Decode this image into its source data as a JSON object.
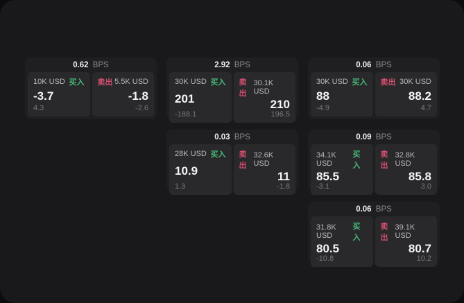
{
  "window": {
    "background": "#19191b"
  },
  "labels": {
    "bps_unit": "BPS",
    "buy": "买入",
    "sell": "卖出"
  },
  "colors": {
    "buy": "#46b878",
    "sell": "#d34f6e",
    "card_background": "#1f1f22",
    "panel_background": "#29292c"
  },
  "cards": [
    {
      "grid": {
        "col": 1,
        "row": 1
      },
      "bps": "0.62",
      "buy": {
        "amount": "10K USD",
        "price": "-3.7",
        "delta": "4.3"
      },
      "sell": {
        "amount": "5.5K USD",
        "price": "-1.8",
        "delta": "-2.6"
      }
    },
    {
      "grid": {
        "col": 2,
        "row": 1
      },
      "bps": "2.92",
      "buy": {
        "amount": "30K USD",
        "price": "201",
        "delta": "-188.1"
      },
      "sell": {
        "amount": "30.1K USD",
        "price": "210",
        "delta": "196.5"
      }
    },
    {
      "grid": {
        "col": 3,
        "row": 1
      },
      "bps": "0.06",
      "buy": {
        "amount": "30K USD",
        "price": "88",
        "delta": "-4.9"
      },
      "sell": {
        "amount": "30K USD",
        "price": "88.2",
        "delta": "4.7"
      }
    },
    {
      "grid": {
        "col": 2,
        "row": 2
      },
      "bps": "0.03",
      "buy": {
        "amount": "28K USD",
        "price": "10.9",
        "delta": "1.3"
      },
      "sell": {
        "amount": "32.6K USD",
        "price": "11",
        "delta": "-1.8"
      }
    },
    {
      "grid": {
        "col": 3,
        "row": 2
      },
      "bps": "0.09",
      "buy": {
        "amount": "34.1K USD",
        "price": "85.5",
        "delta": "-3.1"
      },
      "sell": {
        "amount": "32.8K USD",
        "price": "85.8",
        "delta": "3.0"
      }
    },
    {
      "grid": {
        "col": 3,
        "row": 3
      },
      "bps": "0.06",
      "buy": {
        "amount": "31.8K USD",
        "price": "80.5",
        "delta": "-10.8"
      },
      "sell": {
        "amount": "39.1K USD",
        "price": "80.7",
        "delta": "10.2"
      }
    }
  ]
}
